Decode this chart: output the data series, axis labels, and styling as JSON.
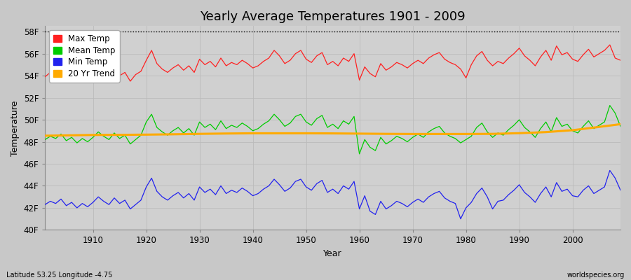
{
  "title": "Yearly Average Temperatures 1901 - 2009",
  "xlabel": "Year",
  "ylabel": "Temperature",
  "subtitle_left": "Latitude 53.25 Longitude -4.75",
  "subtitle_right": "worldspecies.org",
  "years": [
    1901,
    1902,
    1903,
    1904,
    1905,
    1906,
    1907,
    1908,
    1909,
    1910,
    1911,
    1912,
    1913,
    1914,
    1915,
    1916,
    1917,
    1918,
    1919,
    1920,
    1921,
    1922,
    1923,
    1924,
    1925,
    1926,
    1927,
    1928,
    1929,
    1930,
    1931,
    1932,
    1933,
    1934,
    1935,
    1936,
    1937,
    1938,
    1939,
    1940,
    1941,
    1942,
    1943,
    1944,
    1945,
    1946,
    1947,
    1948,
    1949,
    1950,
    1951,
    1952,
    1953,
    1954,
    1955,
    1956,
    1957,
    1958,
    1959,
    1960,
    1961,
    1962,
    1963,
    1964,
    1965,
    1966,
    1967,
    1968,
    1969,
    1970,
    1971,
    1972,
    1973,
    1974,
    1975,
    1976,
    1977,
    1978,
    1979,
    1980,
    1981,
    1982,
    1983,
    1984,
    1985,
    1986,
    1987,
    1988,
    1989,
    1990,
    1991,
    1992,
    1993,
    1994,
    1995,
    1996,
    1997,
    1998,
    1999,
    2000,
    2001,
    2002,
    2003,
    2004,
    2005,
    2006,
    2007,
    2008,
    2009
  ],
  "max_temp": [
    53.9,
    54.3,
    54.1,
    54.5,
    53.8,
    54.2,
    53.6,
    54.0,
    53.7,
    54.1,
    54.8,
    54.2,
    53.9,
    54.6,
    54.0,
    54.3,
    53.5,
    54.1,
    54.4,
    55.4,
    56.3,
    55.1,
    54.6,
    54.3,
    54.7,
    55.0,
    54.5,
    54.9,
    54.3,
    55.5,
    55.0,
    55.3,
    54.8,
    55.6,
    54.9,
    55.2,
    55.0,
    55.4,
    55.1,
    54.7,
    54.9,
    55.3,
    55.6,
    56.3,
    55.8,
    55.1,
    55.4,
    56.0,
    56.3,
    55.5,
    55.2,
    55.8,
    56.1,
    55.0,
    55.3,
    54.9,
    55.6,
    55.3,
    56.0,
    53.6,
    54.8,
    54.2,
    53.9,
    55.1,
    54.5,
    54.8,
    55.2,
    55.0,
    54.7,
    55.1,
    55.4,
    55.1,
    55.6,
    55.9,
    56.1,
    55.5,
    55.2,
    55.0,
    54.6,
    53.8,
    55.0,
    55.8,
    56.2,
    55.4,
    54.9,
    55.3,
    55.1,
    55.6,
    56.0,
    56.5,
    55.8,
    55.4,
    54.9,
    55.7,
    56.3,
    55.4,
    56.7,
    55.9,
    56.1,
    55.5,
    55.3,
    55.9,
    56.4,
    55.7,
    56.0,
    56.3,
    56.8,
    55.6,
    55.4
  ],
  "mean_temp": [
    48.2,
    48.5,
    48.3,
    48.7,
    48.1,
    48.4,
    47.9,
    48.3,
    48.0,
    48.4,
    48.9,
    48.5,
    48.2,
    48.8,
    48.3,
    48.6,
    47.8,
    48.2,
    48.6,
    49.8,
    50.5,
    49.3,
    48.9,
    48.6,
    49.0,
    49.3,
    48.8,
    49.2,
    48.6,
    49.8,
    49.3,
    49.6,
    49.1,
    49.9,
    49.2,
    49.5,
    49.3,
    49.7,
    49.4,
    49.0,
    49.2,
    49.6,
    49.9,
    50.5,
    50.0,
    49.4,
    49.7,
    50.3,
    50.5,
    49.8,
    49.5,
    50.1,
    50.4,
    49.3,
    49.6,
    49.2,
    49.9,
    49.6,
    50.3,
    46.9,
    48.2,
    47.5,
    47.2,
    48.4,
    47.8,
    48.1,
    48.5,
    48.3,
    48.0,
    48.4,
    48.7,
    48.4,
    48.9,
    49.2,
    49.4,
    48.8,
    48.5,
    48.3,
    47.9,
    48.2,
    48.5,
    49.3,
    49.7,
    48.9,
    48.4,
    48.8,
    48.6,
    49.1,
    49.5,
    50.0,
    49.3,
    48.9,
    48.4,
    49.2,
    49.8,
    48.9,
    50.2,
    49.4,
    49.6,
    49.0,
    48.8,
    49.4,
    49.9,
    49.2,
    49.5,
    49.8,
    51.3,
    50.6,
    49.4
  ],
  "min_temp": [
    42.3,
    42.6,
    42.4,
    42.8,
    42.2,
    42.5,
    42.0,
    42.4,
    42.1,
    42.5,
    43.0,
    42.6,
    42.3,
    42.9,
    42.4,
    42.7,
    41.9,
    42.3,
    42.7,
    43.9,
    44.7,
    43.5,
    43.0,
    42.7,
    43.1,
    43.4,
    42.9,
    43.3,
    42.7,
    43.9,
    43.4,
    43.7,
    43.2,
    44.0,
    43.3,
    43.6,
    43.4,
    43.8,
    43.5,
    43.1,
    43.3,
    43.7,
    44.0,
    44.6,
    44.1,
    43.5,
    43.8,
    44.4,
    44.6,
    43.9,
    43.6,
    44.2,
    44.5,
    43.4,
    43.7,
    43.3,
    44.0,
    43.7,
    44.4,
    41.9,
    43.1,
    41.7,
    41.4,
    42.6,
    41.9,
    42.2,
    42.6,
    42.4,
    42.1,
    42.5,
    42.8,
    42.5,
    43.0,
    43.3,
    43.5,
    42.9,
    42.6,
    42.4,
    41.0,
    42.0,
    42.5,
    43.3,
    43.8,
    43.0,
    41.9,
    42.6,
    42.7,
    43.2,
    43.6,
    44.1,
    43.4,
    43.0,
    42.5,
    43.3,
    43.9,
    43.0,
    44.3,
    43.5,
    43.7,
    43.1,
    43.0,
    43.6,
    44.0,
    43.3,
    43.6,
    43.9,
    45.4,
    44.7,
    43.6
  ],
  "trend_years": [
    1901,
    1905,
    1910,
    1915,
    1920,
    1925,
    1930,
    1935,
    1940,
    1945,
    1950,
    1955,
    1960,
    1965,
    1970,
    1975,
    1980,
    1985,
    1990,
    1995,
    2000,
    2005,
    2009
  ],
  "trend_vals": [
    48.55,
    48.58,
    48.62,
    48.63,
    48.65,
    48.68,
    48.72,
    48.75,
    48.77,
    48.77,
    48.77,
    48.76,
    48.74,
    48.72,
    48.71,
    48.71,
    48.71,
    48.72,
    48.78,
    48.88,
    49.05,
    49.35,
    49.6
  ],
  "ylim": [
    40,
    58.5
  ],
  "yticks": [
    40,
    42,
    44,
    46,
    48,
    50,
    52,
    54,
    56,
    58
  ],
  "ytick_labels": [
    "40F",
    "42F",
    "44F",
    "46F",
    "48F",
    "50F",
    "52F",
    "54F",
    "56F",
    "58F"
  ],
  "dotted_line_y": 58,
  "fig_bg_color": "#c8c8c8",
  "plot_bg_color": "#d0d0d0",
  "max_color": "#ff2020",
  "mean_color": "#00cc00",
  "min_color": "#2222ee",
  "trend_color": "#ffaa00",
  "grid_color": "#bbbbbb",
  "title_fontsize": 13,
  "axis_label_fontsize": 9,
  "tick_fontsize": 8.5,
  "legend_fontsize": 8.5
}
